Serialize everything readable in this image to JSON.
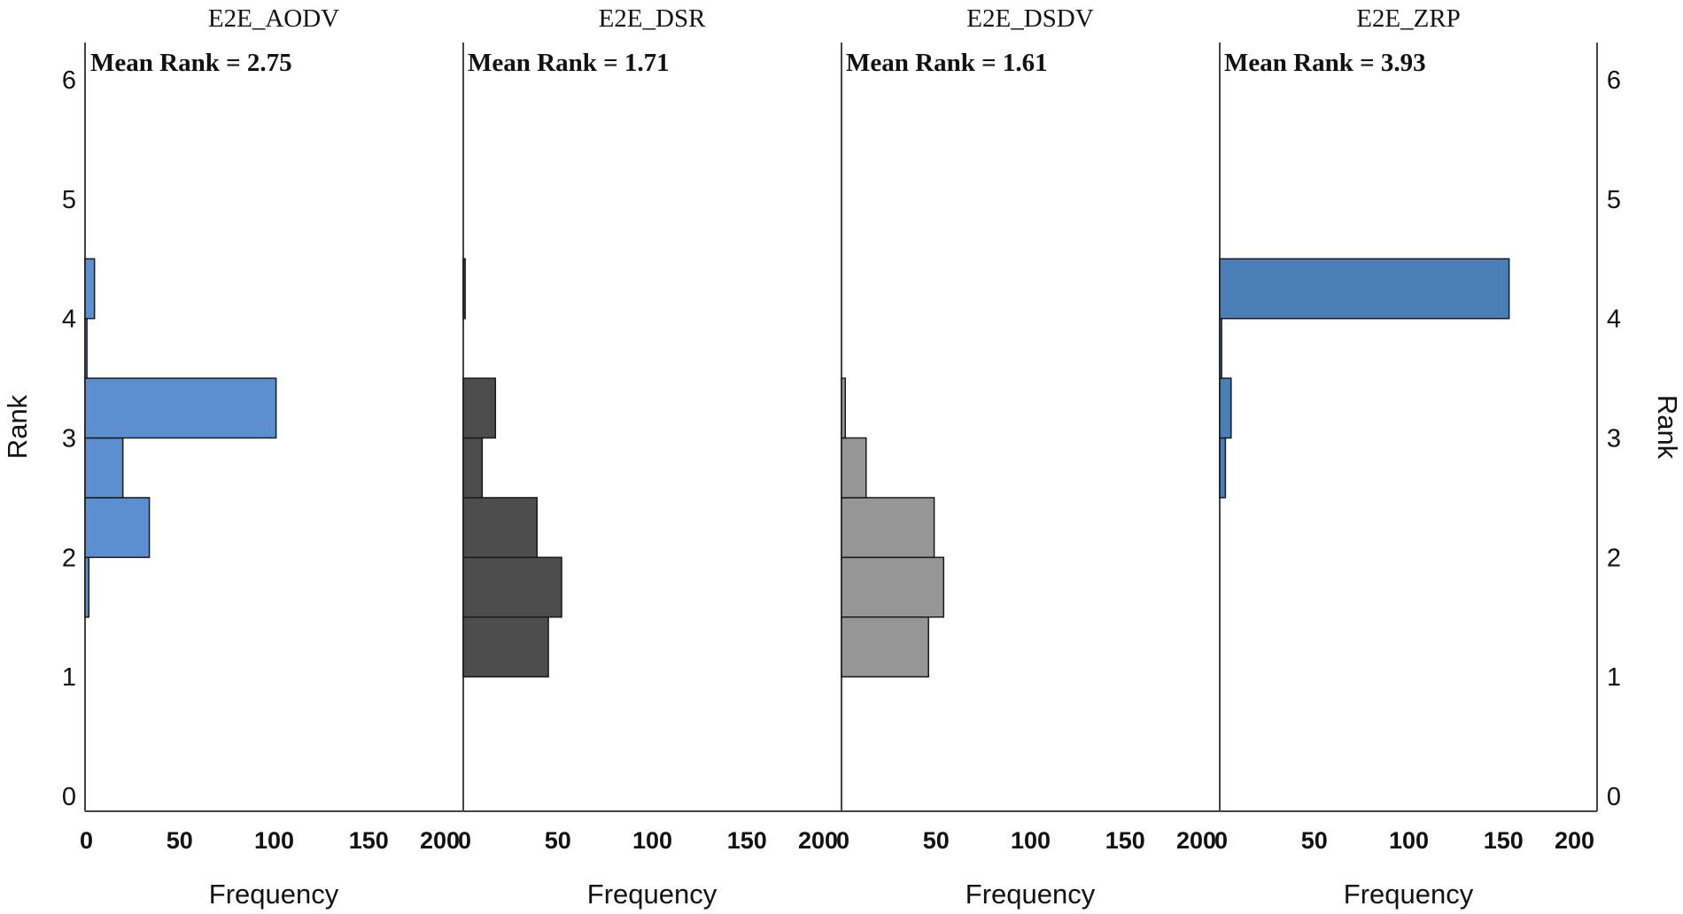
{
  "chart_data": {
    "type": "bar",
    "orientation": "horizontal",
    "xlabel": "Frequency",
    "ylabel": "Rank",
    "xlim": [
      0,
      200
    ],
    "xticks": [
      "0",
      "50",
      "100",
      "150",
      "200"
    ],
    "ylim": [
      0,
      6
    ],
    "yticks": [
      "0",
      "1",
      "2",
      "3",
      "4",
      "5",
      "6"
    ],
    "bin_width": 0.5,
    "panels": [
      {
        "title": "E2E_AODV",
        "mean_label": "Mean Rank = 2.75",
        "color": "#5b8fcf",
        "bins": [
          {
            "lo": 1.5,
            "hi": 2.0,
            "value": 2
          },
          {
            "lo": 2.0,
            "hi": 2.5,
            "value": 34
          },
          {
            "lo": 2.5,
            "hi": 3.0,
            "value": 20
          },
          {
            "lo": 3.0,
            "hi": 3.5,
            "value": 101
          },
          {
            "lo": 3.5,
            "hi": 4.0,
            "value": 1
          },
          {
            "lo": 4.0,
            "hi": 4.5,
            "value": 5
          }
        ]
      },
      {
        "title": "E2E_DSR",
        "mean_label": "Mean Rank = 1.71",
        "color": "#4d4d4d",
        "bins": [
          {
            "lo": 1.0,
            "hi": 1.5,
            "value": 45
          },
          {
            "lo": 1.5,
            "hi": 2.0,
            "value": 52
          },
          {
            "lo": 2.0,
            "hi": 2.5,
            "value": 39
          },
          {
            "lo": 2.5,
            "hi": 3.0,
            "value": 10
          },
          {
            "lo": 3.0,
            "hi": 3.5,
            "value": 17
          },
          {
            "lo": 4.0,
            "hi": 4.5,
            "value": 1
          }
        ]
      },
      {
        "title": "E2E_DSDV",
        "mean_label": "Mean Rank = 1.61",
        "color": "#969696",
        "bins": [
          {
            "lo": 1.0,
            "hi": 1.5,
            "value": 46
          },
          {
            "lo": 1.5,
            "hi": 2.0,
            "value": 54
          },
          {
            "lo": 2.0,
            "hi": 2.5,
            "value": 49
          },
          {
            "lo": 2.5,
            "hi": 3.0,
            "value": 13
          },
          {
            "lo": 3.0,
            "hi": 3.5,
            "value": 2
          }
        ]
      },
      {
        "title": "E2E_ZRP",
        "mean_label": "Mean Rank = 3.93",
        "color": "#4a7fb5",
        "bins": [
          {
            "lo": 2.5,
            "hi": 3.0,
            "value": 3
          },
          {
            "lo": 3.0,
            "hi": 3.5,
            "value": 6
          },
          {
            "lo": 3.5,
            "hi": 4.0,
            "value": 1
          },
          {
            "lo": 4.0,
            "hi": 4.5,
            "value": 153
          }
        ]
      }
    ]
  }
}
